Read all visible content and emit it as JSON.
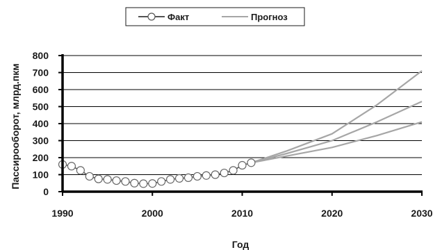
{
  "chart_data": {
    "type": "line",
    "xlabel": "Год",
    "ylabel": "Пассирооборот, млрд.пкм",
    "xlim": [
      1990,
      2030
    ],
    "ylim": [
      0,
      800
    ],
    "x_ticks": [
      "1990",
      "2000",
      "2010",
      "2020",
      "2030"
    ],
    "y_ticks": [
      "0",
      "100",
      "200",
      "300",
      "400",
      "500",
      "600",
      "700",
      "800"
    ],
    "grid": "horizontal",
    "legend_position": "top-center",
    "colors": {
      "fact": "#1a1a1a",
      "forecast": "#a6a6a6",
      "marker_fill": "#ffffff",
      "grid": "#000000"
    },
    "series": [
      {
        "name": "Факт",
        "style": "line-with-circle-markers",
        "x": [
          1990,
          1991,
          1992,
          1993,
          1994,
          1995,
          1996,
          1997,
          1998,
          1999,
          2000,
          2001,
          2002,
          2003,
          2004,
          2005,
          2006,
          2007,
          2008,
          2009,
          2010,
          2011
        ],
        "y": [
          160,
          150,
          125,
          90,
          75,
          72,
          65,
          60,
          50,
          47,
          48,
          60,
          72,
          78,
          82,
          90,
          95,
          100,
          110,
          125,
          155,
          170
        ]
      },
      {
        "name": "Прогноз",
        "style": "line",
        "lines": [
          {
            "x": [
              2011,
              2015,
              2020,
              2025,
              2030
            ],
            "y": [
              170,
              240,
              340,
              510,
              710
            ]
          },
          {
            "x": [
              2011,
              2015,
              2020,
              2025,
              2030
            ],
            "y": [
              170,
              225,
              300,
              410,
              530
            ]
          },
          {
            "x": [
              2011,
              2015,
              2020,
              2025,
              2030
            ],
            "y": [
              170,
              210,
              260,
              330,
              410
            ]
          }
        ]
      }
    ]
  }
}
